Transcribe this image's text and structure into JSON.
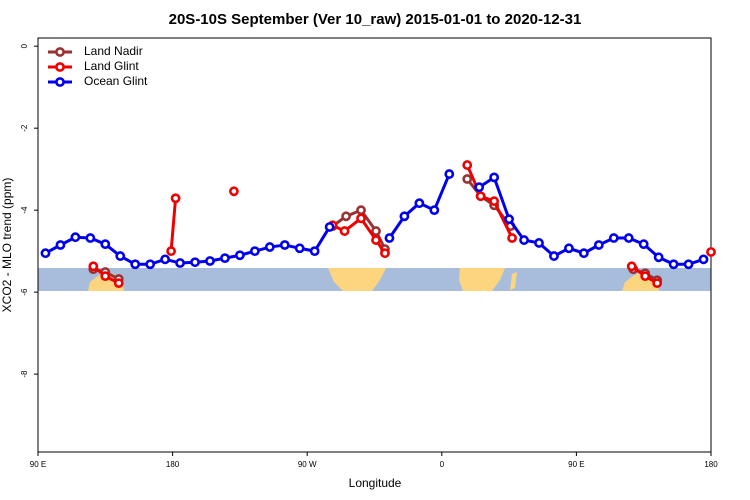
{
  "chart_data": {
    "type": "line",
    "title": "20S-10S September (Ver 10_raw)   2015-01-01 to 2020-12-31",
    "x_label": "Longitude",
    "y_label": "XCO2 - MLO trend (ppm)",
    "xlim": [
      90,
      540
    ],
    "ylim": [
      0.2,
      -9.9
    ],
    "xticks": [
      {
        "value": 90,
        "label": "90 E"
      },
      180,
      {
        "value": 270,
        "label": "90 W"
      },
      {
        "value": 360,
        "label": "0"
      },
      {
        "value": 450,
        "label": "90 E"
      },
      {
        "value": 540,
        "label": "180"
      }
    ],
    "yticks": [
      0,
      -2,
      -4,
      -6,
      -8
    ],
    "legend": "top-left",
    "series": [
      {
        "name": "Land Nadir",
        "color": "#993333",
        "x": [
          127,
          135,
          144,
          null,
          287,
          296,
          306,
          316,
          322,
          null,
          377,
          386,
          395,
          406,
          null,
          488,
          496,
          504
        ],
        "values": [
          -5.44,
          -5.51,
          -5.68,
          null,
          -4.39,
          -4.15,
          -4.0,
          -4.51,
          -4.95,
          null,
          -3.24,
          -3.66,
          -3.88,
          -4.39,
          null,
          -5.44,
          -5.54,
          -5.71
        ]
      },
      {
        "name": "Land Glint",
        "color": "#ee0000",
        "x": [
          127,
          135,
          144,
          null,
          179,
          182,
          null,
          221,
          null,
          287,
          295,
          306,
          316,
          322,
          null,
          377,
          386,
          395,
          407,
          null,
          487,
          496,
          504,
          null,
          540
        ],
        "values": [
          -5.37,
          -5.61,
          -5.78,
          null,
          -5.0,
          -3.71,
          null,
          -3.54,
          null,
          -4.37,
          -4.51,
          -4.2,
          -4.73,
          -5.05,
          null,
          -2.9,
          -3.66,
          -3.78,
          -4.68,
          null,
          -5.37,
          -5.61,
          -5.78,
          null,
          -5.02
        ]
      },
      {
        "name": "Ocean Glint",
        "color": "#0000ee",
        "x": [
          95,
          105,
          115,
          125,
          135,
          145,
          155,
          165,
          175,
          185,
          195,
          205,
          215,
          225,
          235,
          245,
          255,
          265,
          275,
          285,
          295,
          305,
          315,
          325,
          335,
          345,
          355,
          365,
          375,
          385,
          395,
          405,
          415,
          425,
          435,
          445,
          455,
          465,
          475,
          485,
          495,
          505,
          515,
          525,
          535
        ],
        "values": [
          -5.05,
          -4.85,
          -4.66,
          -4.68,
          -4.83,
          -5.12,
          -5.32,
          -5.32,
          -5.2,
          -5.29,
          -5.27,
          -5.24,
          -5.17,
          -5.1,
          -5.0,
          -4.9,
          -4.85,
          -4.93,
          -5.0,
          -4.41,
          null,
          null,
          null,
          -4.68,
          -4.15,
          -3.83,
          -4.0,
          -3.12,
          null,
          -3.44,
          -3.2,
          -4.22,
          -4.73,
          -4.8,
          -5.12,
          -4.93,
          -5.05,
          -4.85,
          -4.68,
          -4.68,
          -4.83,
          -5.15,
          -5.32,
          -5.32,
          -5.2
        ]
      }
    ]
  }
}
